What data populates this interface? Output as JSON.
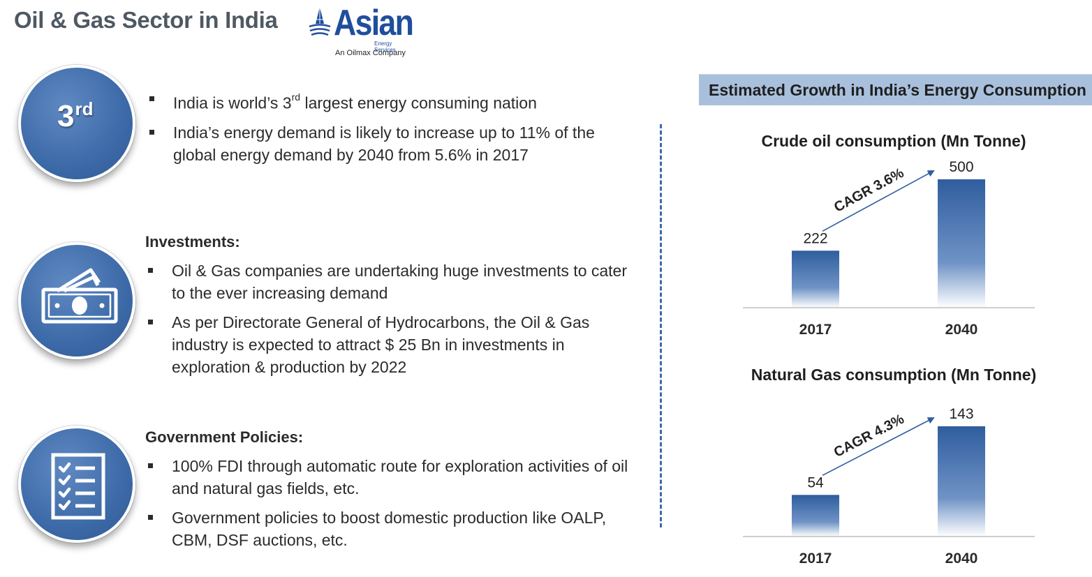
{
  "page": {
    "title": "Oil & Gas Sector in India"
  },
  "logo": {
    "word": "Asian",
    "sub1": "Energy Services",
    "sub2": "An Oilmax Company"
  },
  "section1": {
    "badge_number": "3",
    "badge_suffix": "rd",
    "bullet1_prefix": "India is world’s 3",
    "bullet1_sup": "rd",
    "bullet1_suffix": " largest energy consuming nation",
    "bullet2": "India’s energy demand is likely to increase up to 11% of the global energy demand by 2040 from 5.6% in 2017"
  },
  "section2": {
    "heading": "Investments:",
    "icon": "money-icon",
    "bullet1": "Oil & Gas companies are undertaking huge investments to cater to the ever increasing demand",
    "bullet2": "As per Directorate General of Hydrocarbons, the Oil & Gas industry is expected to attract $ 25 Bn in investments in exploration & production by 2022"
  },
  "section3": {
    "heading": "Government Policies:",
    "icon": "checklist-icon",
    "bullet1": "100% FDI through automatic route for exploration activities of oil and natural gas fields, etc.",
    "bullet2": "Government policies to boost domestic production like OALP, CBM, DSF auctions, etc."
  },
  "right_panel": {
    "banner": "Estimated Growth in India’s Energy Consumption"
  },
  "colors": {
    "accent": "#3d6aa8",
    "bar_top": "#2f5d9e",
    "banner": "#a9c0dd",
    "title": "#4f5963"
  },
  "chart_data": [
    {
      "type": "bar",
      "title": "Crude oil consumption (Mn Tonne)",
      "categories": [
        "2017",
        "2040"
      ],
      "values": [
        222,
        500
      ],
      "annotation": "CAGR 3.6%",
      "ylim": [
        0,
        500
      ],
      "grid": false
    },
    {
      "type": "bar",
      "title": "Natural Gas consumption (Mn Tonne)",
      "categories": [
        "2017",
        "2040"
      ],
      "values": [
        54,
        143
      ],
      "annotation": "CAGR 4.3%",
      "ylim": [
        0,
        143
      ],
      "grid": false
    }
  ]
}
